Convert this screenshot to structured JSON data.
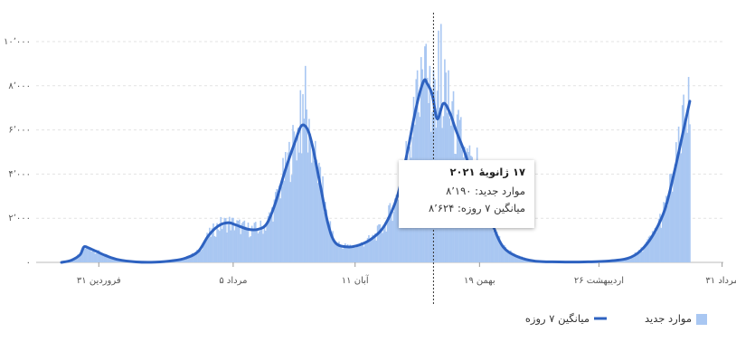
{
  "chart_data": {
    "type": "bar+line",
    "title": "",
    "xlabel": "",
    "ylabel": "",
    "ylim": [
      0,
      11000
    ],
    "yticks": [
      {
        "value": 0,
        "label": "۰"
      },
      {
        "value": 2000,
        "label": "۲٬۰۰۰"
      },
      {
        "value": 4000,
        "label": "۴٬۰۰۰"
      },
      {
        "value": 6000,
        "label": "۶٬۰۰۰"
      },
      {
        "value": 8000,
        "label": "۸٬۰۰۰"
      },
      {
        "value": 10000,
        "label": "۱۰٬۰۰۰"
      }
    ],
    "xticks": [
      {
        "day": 30,
        "label": "۳۱ فروردین"
      },
      {
        "day": 138,
        "label": "۵ مرداد"
      },
      {
        "day": 236,
        "label": "۱۱ آبان"
      },
      {
        "day": 336,
        "label": "۱۹ بهمن"
      },
      {
        "day": 432,
        "label": "۲۶ اردیبهشت"
      },
      {
        "day": 531,
        "label": "۳۱ مرداد"
      }
    ],
    "series": [
      {
        "name": "موارد جدید",
        "color": "#a9c7f2"
      },
      {
        "name": "میانگین ۷ روزه",
        "color": "#2e62c0"
      }
    ],
    "avg_points": [
      [
        0,
        0
      ],
      [
        8,
        100
      ],
      [
        15,
        350
      ],
      [
        18,
        700
      ],
      [
        22,
        650
      ],
      [
        28,
        500
      ],
      [
        35,
        320
      ],
      [
        45,
        130
      ],
      [
        60,
        20
      ],
      [
        75,
        10
      ],
      [
        90,
        80
      ],
      [
        100,
        200
      ],
      [
        110,
        500
      ],
      [
        118,
        1200
      ],
      [
        126,
        1650
      ],
      [
        134,
        1800
      ],
      [
        140,
        1700
      ],
      [
        150,
        1500
      ],
      [
        158,
        1500
      ],
      [
        165,
        1750
      ],
      [
        172,
        2700
      ],
      [
        180,
        4200
      ],
      [
        188,
        5500
      ],
      [
        193,
        6200
      ],
      [
        198,
        6000
      ],
      [
        202,
        5200
      ],
      [
        208,
        3500
      ],
      [
        214,
        1800
      ],
      [
        220,
        900
      ],
      [
        230,
        700
      ],
      [
        240,
        800
      ],
      [
        250,
        1100
      ],
      [
        260,
        1700
      ],
      [
        270,
        3000
      ],
      [
        278,
        5000
      ],
      [
        285,
        7000
      ],
      [
        291,
        8200
      ],
      [
        294,
        8100
      ],
      [
        298,
        7600
      ],
      [
        302,
        6500
      ],
      [
        307,
        7200
      ],
      [
        312,
        6800
      ],
      [
        317,
        6000
      ],
      [
        324,
        5000
      ],
      [
        330,
        4000
      ],
      [
        336,
        3700
      ],
      [
        342,
        2600
      ],
      [
        348,
        1500
      ],
      [
        355,
        700
      ],
      [
        365,
        300
      ],
      [
        380,
        60
      ],
      [
        400,
        20
      ],
      [
        420,
        20
      ],
      [
        440,
        60
      ],
      [
        455,
        180
      ],
      [
        465,
        500
      ],
      [
        475,
        1200
      ],
      [
        485,
        2400
      ],
      [
        493,
        4200
      ],
      [
        500,
        6000
      ],
      [
        505,
        7300
      ]
    ],
    "daily_spikes": [
      [
        180,
        5000
      ],
      [
        192,
        7800
      ],
      [
        196,
        8900
      ],
      [
        199,
        6500
      ],
      [
        204,
        5500
      ],
      [
        210,
        3900
      ],
      [
        283,
        7500
      ],
      [
        286,
        8700
      ],
      [
        289,
        9300
      ],
      [
        293,
        9900
      ],
      [
        296,
        8900
      ],
      [
        300,
        8300
      ],
      [
        303,
        10500
      ],
      [
        305,
        10800
      ],
      [
        308,
        9200
      ],
      [
        311,
        8700
      ],
      [
        314,
        7300
      ],
      [
        318,
        6700
      ],
      [
        322,
        5100
      ],
      [
        328,
        5300
      ],
      [
        334,
        5200
      ],
      [
        500,
        7600
      ],
      [
        504,
        8400
      ],
      [
        507,
        8100
      ]
    ],
    "tooltip": {
      "day": 299,
      "date": "۱۷ ژانویهٔ ۲۰۲۱",
      "new_cases_label": "موارد جدید:",
      "new_cases_value": "۸٬۱۹۰",
      "avg_label": "میانگین ۷ روزه:",
      "avg_value": "۸٬۶۲۴"
    },
    "legend_position": "bottom-right",
    "grid": "horizontal-dashed"
  }
}
